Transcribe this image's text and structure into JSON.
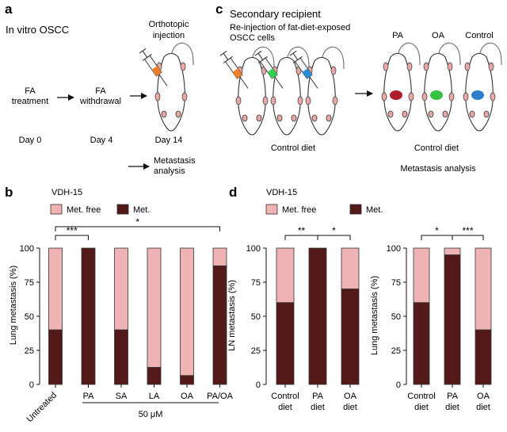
{
  "panel_a": {
    "label": "a",
    "title": "In vitro OSCC",
    "step1_line1": "FA",
    "step1_line2": "treatment",
    "step2_line1": "FA",
    "step2_line2": "withdrawal",
    "injection_line1": "Orthotopic",
    "injection_line2": "injection",
    "day0": "Day 0",
    "day4": "Day 4",
    "day14": "Day 14",
    "analysis_line1": "Metastasis",
    "analysis_line2": "analysis"
  },
  "panel_c": {
    "label": "c",
    "title": "Secondary recipient",
    "subtitle_line1": "Re-injection of fat-diet-exposed",
    "subtitle_line2": "OSCC cells",
    "group_pa": "PA",
    "group_oa": "OA",
    "group_control": "Control",
    "diet_left": "Control diet",
    "diet_right": "Control diet",
    "analysis": "Metastasis analysis",
    "syringe_colors": [
      "#f07f2c",
      "#2fd34f",
      "#2a8fd6"
    ],
    "tumor_colors": [
      "#b01e2e",
      "#36c241",
      "#2d7fc9"
    ]
  },
  "legend": {
    "free": "Met. free",
    "met": "Met."
  },
  "colors": {
    "met": "#531919",
    "free": "#efb3b6",
    "axis": "#111111"
  },
  "panel_b": {
    "label": "b",
    "cell_line": "VDH-15",
    "ylabel": "Lung metastasis (%)",
    "yticks": [
      "0",
      "25",
      "50",
      "75",
      "100"
    ],
    "group_label": "50 μM",
    "sig_1": "***",
    "sig_2": "*"
  },
  "panel_d": {
    "label": "d",
    "cell_line": "VDH-15",
    "ylabel_left": "LN metastasis (%)",
    "ylabel_right": "Lung metastasis (%)",
    "yticks": [
      "0",
      "25",
      "50",
      "75",
      "100"
    ],
    "left_sig_1": "**",
    "left_sig_2": "*",
    "right_sig_1": "*",
    "right_sig_2": "***",
    "cat_line1": [
      "Control",
      "PA",
      "OA"
    ],
    "cat_line2": [
      "diet",
      "diet",
      "diet"
    ]
  },
  "chart_data": [
    {
      "type": "bar",
      "stacked": true,
      "categories": [
        "Untreated",
        "PA",
        "SA",
        "LA",
        "OA",
        "PA/OA"
      ],
      "series": [
        {
          "name": "Met.",
          "values": [
            40,
            100,
            40,
            12.5,
            6.5,
            87
          ]
        },
        {
          "name": "Met. free",
          "values": [
            60,
            0,
            60,
            87.5,
            93.5,
            13
          ]
        }
      ],
      "title": "VDH-15",
      "ylabel": "Lung metastasis (%)",
      "ylim": [
        0,
        100
      ],
      "yticks": [
        0,
        25,
        50,
        75,
        100
      ],
      "legend": "top-left",
      "annotations": [
        "***",
        "*",
        "50 μM"
      ]
    },
    {
      "type": "bar",
      "stacked": true,
      "categories": [
        "Control diet",
        "PA diet",
        "OA diet"
      ],
      "series": [
        {
          "name": "Met.",
          "values": [
            60,
            100,
            70
          ]
        },
        {
          "name": "Met. free",
          "values": [
            40,
            0,
            30
          ]
        }
      ],
      "title": "VDH-15",
      "ylabel": "LN metastasis (%)",
      "ylim": [
        0,
        100
      ],
      "yticks": [
        0,
        25,
        50,
        75,
        100
      ],
      "annotations": [
        "**",
        "*"
      ]
    },
    {
      "type": "bar",
      "stacked": true,
      "categories": [
        "Control diet",
        "PA diet",
        "OA diet"
      ],
      "series": [
        {
          "name": "Met.",
          "values": [
            60,
            95,
            40
          ]
        },
        {
          "name": "Met. free",
          "values": [
            40,
            5,
            60
          ]
        }
      ],
      "ylabel": "Lung metastasis (%)",
      "ylim": [
        0,
        100
      ],
      "yticks": [
        0,
        25,
        50,
        75,
        100
      ],
      "annotations": [
        "*",
        "***"
      ]
    }
  ]
}
